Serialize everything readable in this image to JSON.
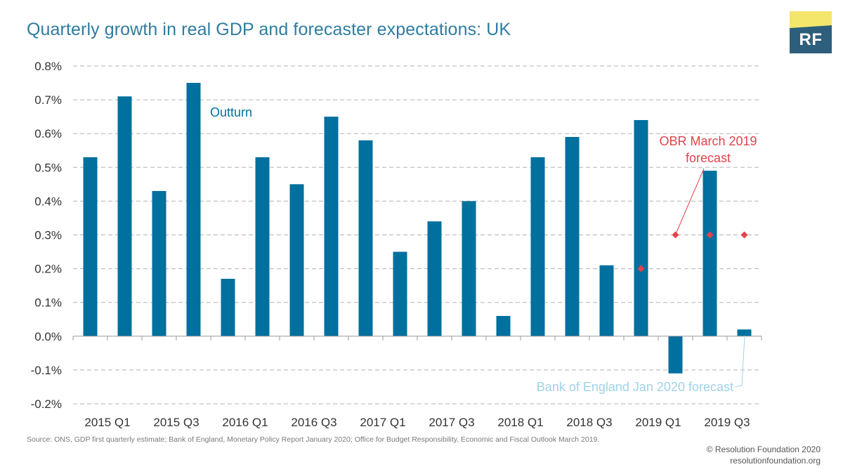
{
  "title": "Quarterly growth in real GDP and forecaster expectations: UK",
  "logo": {
    "text": "RF",
    "bg_color": "#2d5f7c",
    "accent_color": "#f4e66a"
  },
  "source": "Source: ONS, GDP first quarterly estimate; Bank of England, Monetary Policy Report January 2020; Office for Budget Responsibility, Economic and Fiscal Outlook March 2019.",
  "copyright": "© Resolution Foundation 2020",
  "website": "resolutionfoundation.org",
  "chart_data": {
    "type": "bar",
    "title": "Quarterly growth in real GDP and forecaster expectations: UK",
    "xlabel": "",
    "ylabel": "",
    "ylim": [
      -0.2,
      0.8
    ],
    "yticks": [
      "-0.2%",
      "-0.1%",
      "0.0%",
      "0.1%",
      "0.2%",
      "0.3%",
      "0.4%",
      "0.5%",
      "0.6%",
      "0.7%",
      "0.8%"
    ],
    "ytick_values": [
      -0.2,
      -0.1,
      0,
      0.1,
      0.2,
      0.3,
      0.4,
      0.5,
      0.6,
      0.7,
      0.8
    ],
    "grid": true,
    "categories": [
      "2015 Q1",
      "2015 Q2",
      "2015 Q3",
      "2015 Q4",
      "2016 Q1",
      "2016 Q2",
      "2016 Q3",
      "2016 Q4",
      "2017 Q1",
      "2017 Q2",
      "2017 Q3",
      "2017 Q4",
      "2018 Q1",
      "2018 Q2",
      "2018 Q3",
      "2018 Q4",
      "2019 Q1",
      "2019 Q2",
      "2019 Q3",
      "2019 Q4"
    ],
    "xtick_labels": [
      "2015 Q1",
      "",
      "2015 Q3",
      "",
      "2016 Q1",
      "",
      "2016 Q3",
      "",
      "2017 Q1",
      "",
      "2017 Q3",
      "",
      "2018 Q1",
      "",
      "2018 Q3",
      "",
      "2019 Q1",
      "",
      "2019 Q3",
      ""
    ],
    "series": [
      {
        "name": "Outturn",
        "kind": "bar",
        "color": "#00709e",
        "values": [
          0.53,
          0.71,
          0.43,
          0.75,
          0.17,
          0.53,
          0.45,
          0.65,
          0.58,
          0.25,
          0.34,
          0.4,
          0.06,
          0.53,
          0.59,
          0.21,
          0.64,
          -0.11,
          0.49,
          0.02
        ]
      },
      {
        "name": "OBR March 2019 forecast",
        "kind": "marker",
        "color": "#e3424b",
        "values": [
          null,
          null,
          null,
          null,
          null,
          null,
          null,
          null,
          null,
          null,
          null,
          null,
          null,
          null,
          null,
          null,
          0.2,
          0.3,
          0.3,
          0.3
        ]
      }
    ],
    "annotations": [
      {
        "text": "Outturn",
        "color": "#00709e"
      },
      {
        "text_lines": [
          "OBR March 2019",
          "forecast"
        ],
        "color": "#e3424b"
      },
      {
        "text": "Bank of England Jan 2020 forecast",
        "color": "#9fd3e8"
      }
    ]
  }
}
